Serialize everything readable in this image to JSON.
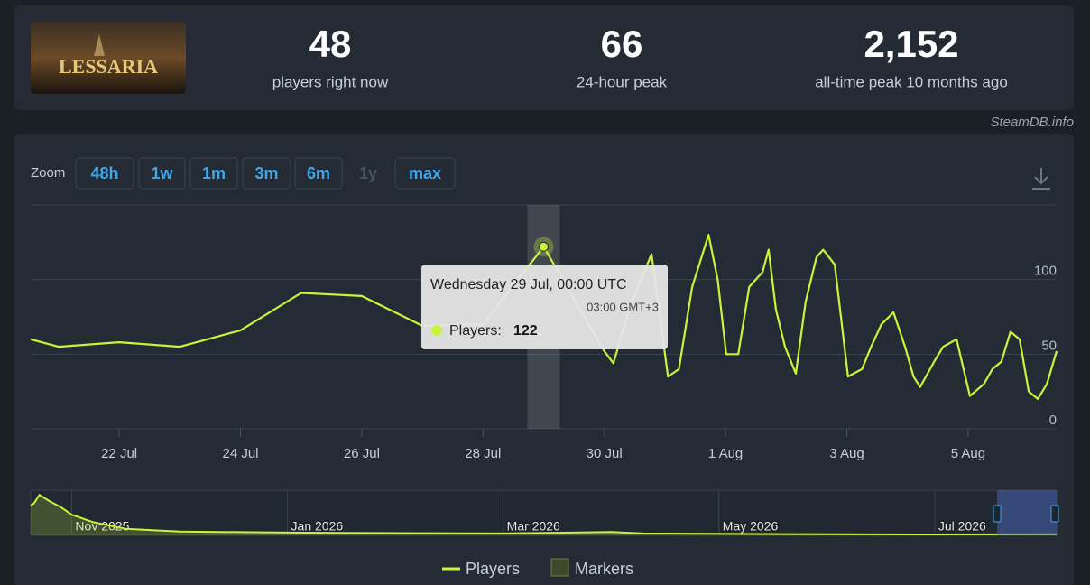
{
  "header": {
    "logo_text": "LESSARIA",
    "stats": [
      {
        "value": "48",
        "label": "players right now"
      },
      {
        "value": "66",
        "label": "24-hour peak"
      },
      {
        "value": "2,152",
        "label": "all-time peak 10 months ago"
      }
    ],
    "credit": "SteamDB.info"
  },
  "zoom": {
    "label": "Zoom",
    "buttons": [
      "48h",
      "1w",
      "1m",
      "3m",
      "6m",
      "1y",
      "max"
    ],
    "enabled": [
      true,
      true,
      true,
      true,
      true,
      false,
      true
    ]
  },
  "tooltip": {
    "title": "Wednesday 29 Jul, 00:00 UTC",
    "subtitle": "03:00 GMT+3",
    "label": "Players:"
  },
  "chart_data": [
    {
      "type": "line",
      "x": [
        20.54,
        21.0,
        22.0,
        23.0,
        24.0,
        25.0,
        26.0,
        27.0,
        28.0,
        29.0,
        30.0,
        30.15,
        30.45,
        30.78,
        31.05,
        31.23,
        31.45,
        31.72,
        31.87,
        32.01,
        32.21,
        32.39,
        32.61,
        32.71,
        32.83,
        32.98,
        33.16,
        33.32,
        33.5,
        33.61,
        33.8,
        34.02,
        34.25,
        34.4,
        34.57,
        34.77,
        34.96,
        35.1,
        35.21,
        35.44,
        35.59,
        35.81,
        36.03,
        36.26,
        36.4,
        36.55,
        36.7,
        36.85,
        37.0,
        37.15,
        37.3,
        37.46
      ],
      "series": [
        {
          "name": "Players",
          "color": "#c8f53a",
          "values": [
            60,
            55,
            58,
            55,
            66,
            91,
            89,
            69,
            70,
            122,
            52,
            44,
            85,
            117,
            35,
            40,
            95,
            130,
            100,
            50,
            50,
            95,
            105,
            120,
            80,
            55,
            37,
            85,
            115,
            120,
            110,
            35,
            40,
            55,
            70,
            78,
            55,
            35,
            28,
            45,
            55,
            60,
            22,
            30,
            40,
            45,
            65,
            60,
            25,
            20,
            30,
            52
          ]
        }
      ],
      "markers_name": "Markers",
      "xlim": [
        20.54,
        37.46
      ],
      "ylim": [
        0,
        150
      ],
      "xticks": [
        {
          "value": 22,
          "label": "22 Jul"
        },
        {
          "value": 24,
          "label": "24 Jul"
        },
        {
          "value": 26,
          "label": "26 Jul"
        },
        {
          "value": 28,
          "label": "28 Jul"
        },
        {
          "value": 30,
          "label": "30 Jul"
        },
        {
          "value": 32,
          "label": "1 Aug"
        },
        {
          "value": 34,
          "label": "3 Aug"
        },
        {
          "value": 36,
          "label": "5 Aug"
        }
      ],
      "yticks": [
        0,
        50,
        100
      ],
      "grid": true
    },
    {
      "type": "area",
      "color": "#c8f53a",
      "x": [
        10.62,
        10.65,
        10.7,
        10.8,
        10.9,
        11.0,
        11.2,
        11.5,
        12.0,
        13.0,
        14.0,
        15.0,
        16.0,
        16.3,
        17.0,
        18.0,
        19.0,
        20.13
      ],
      "values": [
        1600,
        1700,
        2152,
        1800,
        1500,
        1100,
        700,
        350,
        200,
        150,
        120,
        100,
        180,
        100,
        80,
        60,
        50,
        60
      ],
      "xlim": [
        10.62,
        20.13
      ],
      "ylim": [
        0,
        2400
      ],
      "xticks": [
        {
          "value": 11,
          "label": "Nov 2025"
        },
        {
          "value": 13,
          "label": "Jan 2026"
        },
        {
          "value": 15,
          "label": "Mar 2026"
        },
        {
          "value": 17,
          "label": "May 2026"
        },
        {
          "value": 19,
          "label": "Jul 2026"
        }
      ],
      "grid": true
    }
  ]
}
